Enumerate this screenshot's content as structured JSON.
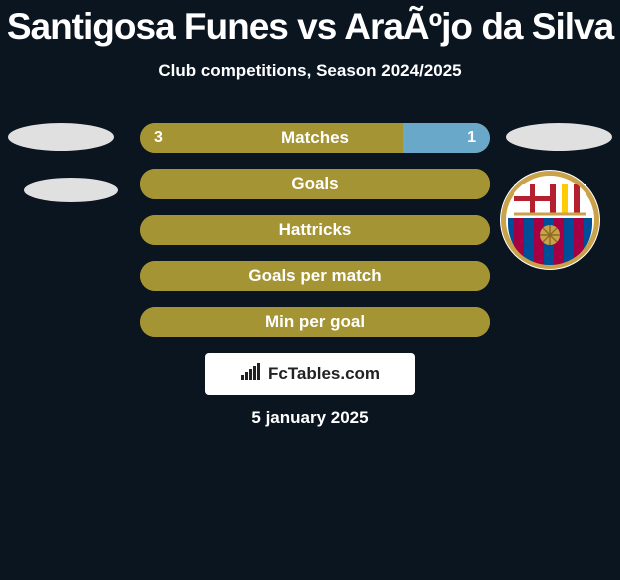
{
  "title": "Santigosa Funes vs AraÃºjo da Silva",
  "subtitle": "Club competitions, Season 2024/2025",
  "colors": {
    "background": "#0a1520",
    "ellipse": "#e0e0e0",
    "bar_fill_main": "#a59433",
    "bar_fill_alt": "#6aa8c9",
    "bar_empty": "#a59433",
    "text": "#ffffff",
    "logo_bg": "#ffffff",
    "logo_text": "#222222"
  },
  "stats": [
    {
      "label": "Matches",
      "left_value": "3",
      "right_value": "1",
      "left_pct": 75,
      "right_pct": 25,
      "left_color": "#a59433",
      "right_color": "#6aa8c9",
      "show_left_value": true,
      "show_right_value": true
    },
    {
      "label": "Goals",
      "left_value": "",
      "right_value": "",
      "left_pct": 100,
      "right_pct": 0,
      "left_color": "#a59433",
      "right_color": "#6aa8c9",
      "show_left_value": false,
      "show_right_value": false
    },
    {
      "label": "Hattricks",
      "left_value": "",
      "right_value": "",
      "left_pct": 100,
      "right_pct": 0,
      "left_color": "#a59433",
      "right_color": "#6aa8c9",
      "show_left_value": false,
      "show_right_value": false
    },
    {
      "label": "Goals per match",
      "left_value": "",
      "right_value": "",
      "left_pct": 100,
      "right_pct": 0,
      "left_color": "#a59433",
      "right_color": "#6aa8c9",
      "show_left_value": false,
      "show_right_value": false
    },
    {
      "label": "Min per goal",
      "left_value": "",
      "right_value": "",
      "left_pct": 100,
      "right_pct": 0,
      "left_color": "#a59433",
      "right_color": "#6aa8c9",
      "show_left_value": false,
      "show_right_value": false
    }
  ],
  "club_badge": {
    "outer_ring": "#c9a24a",
    "top_bg": "#ffffff",
    "cross": "#b5202f",
    "stripes_a": "#a50044",
    "stripes_b": "#004d98",
    "ball": "#c9a24a"
  },
  "logo": {
    "text": "FcTables.com"
  },
  "date": "5 january 2025"
}
